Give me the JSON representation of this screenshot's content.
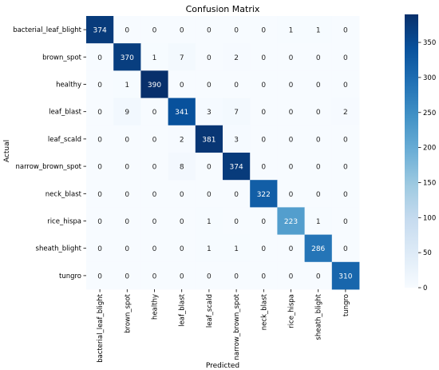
{
  "chart_data": {
    "type": "heatmap",
    "title": "Confusion Matrix",
    "xlabel": "Predicted",
    "ylabel": "Actual",
    "x_categories": [
      "bacterial_leaf_blight",
      "brown_spot",
      "healthy",
      "leaf_blast",
      "leaf_scald",
      "narrow_brown_spot",
      "neck_blast",
      "rice_hispa",
      "sheath_blight",
      "tungro"
    ],
    "y_categories": [
      "bacterial_leaf_blight",
      "brown_spot",
      "healthy",
      "leaf_blast",
      "leaf_scald",
      "narrow_brown_spot",
      "neck_blast",
      "rice_hispa",
      "sheath_blight",
      "tungro"
    ],
    "values": [
      [
        374,
        0,
        0,
        0,
        0,
        0,
        0,
        1,
        1,
        0
      ],
      [
        0,
        370,
        1,
        7,
        0,
        2,
        0,
        0,
        0,
        0
      ],
      [
        0,
        1,
        390,
        0,
        0,
        0,
        0,
        0,
        0,
        0
      ],
      [
        0,
        9,
        0,
        341,
        3,
        7,
        0,
        0,
        0,
        2
      ],
      [
        0,
        0,
        0,
        2,
        381,
        3,
        0,
        0,
        0,
        0
      ],
      [
        0,
        0,
        0,
        8,
        0,
        374,
        0,
        0,
        0,
        0
      ],
      [
        0,
        0,
        0,
        0,
        0,
        0,
        322,
        0,
        0,
        0
      ],
      [
        0,
        0,
        0,
        0,
        1,
        0,
        0,
        223,
        1,
        0
      ],
      [
        0,
        0,
        0,
        0,
        1,
        1,
        0,
        0,
        286,
        0
      ],
      [
        0,
        0,
        0,
        0,
        0,
        0,
        0,
        0,
        0,
        310
      ]
    ],
    "colorbar": {
      "colormap": "Blues",
      "range": [
        0,
        390
      ],
      "ticks": [
        0,
        50,
        100,
        150,
        200,
        250,
        300,
        350
      ]
    }
  }
}
